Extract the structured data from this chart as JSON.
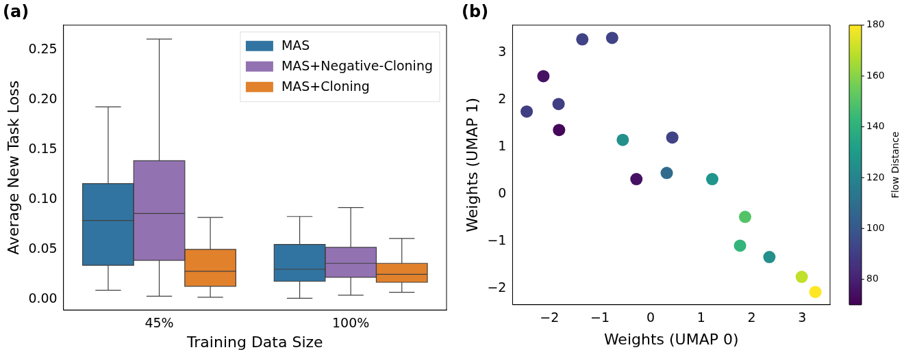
{
  "chart_data": [
    {
      "type": "box",
      "title": "(a)",
      "xlabel": "Training Data Size",
      "ylabel": "Average New Task Loss",
      "categories": [
        "45%",
        "100%"
      ],
      "ylim": [
        -0.011,
        0.275
      ],
      "yticks": [
        {
          "value": 0,
          "label": "0.00"
        },
        {
          "value": 0.05,
          "label": "0.05"
        },
        {
          "value": 0.1,
          "label": "0.10"
        },
        {
          "value": 0.15,
          "label": "0.15"
        },
        {
          "value": 0.2,
          "label": "0.20"
        },
        {
          "value": 0.25,
          "label": "0.25"
        }
      ],
      "legend": "top right",
      "series": [
        {
          "name": "MAS",
          "color": "#3274a1",
          "boxes": [
            {
              "low": 0.009,
              "q1": 0.034,
              "median": 0.079,
              "q3": 0.116,
              "high": 0.193
            },
            {
              "low": 0.001,
              "q1": 0.018,
              "median": 0.03,
              "q3": 0.055,
              "high": 0.083
            }
          ]
        },
        {
          "name": "MAS+Negative-Cloning",
          "color": "#9372b2",
          "boxes": [
            {
              "low": 0.003,
              "q1": 0.039,
              "median": 0.086,
              "q3": 0.139,
              "high": 0.261
            },
            {
              "low": 0.004,
              "q1": 0.022,
              "median": 0.036,
              "q3": 0.052,
              "high": 0.092
            }
          ]
        },
        {
          "name": "MAS+Cloning",
          "color": "#e1812c",
          "boxes": [
            {
              "low": 0.002,
              "q1": 0.013,
              "median": 0.028,
              "q3": 0.05,
              "high": 0.082
            },
            {
              "low": 0.007,
              "q1": 0.017,
              "median": 0.025,
              "q3": 0.036,
              "high": 0.061
            }
          ]
        }
      ]
    },
    {
      "type": "scatter",
      "title": "(b)",
      "xlabel": "Weights (UMAP 0)",
      "ylabel": "Weights (UMAP 1)",
      "clabel": "Flow Distance",
      "xlim": [
        -2.73,
        3.55
      ],
      "xticks": [
        {
          "value": -2,
          "label": "−2"
        },
        {
          "value": -1,
          "label": "−1"
        },
        0,
        1,
        2,
        3
      ],
      "ylim": [
        -2.34,
        3.58
      ],
      "yticks": [
        {
          "value": -2,
          "label": "−2"
        },
        {
          "value": -1,
          "label": "−1"
        },
        0,
        1,
        2,
        3
      ],
      "clim": [
        70,
        180
      ],
      "cticks": [
        80,
        100,
        120,
        140,
        160,
        180
      ],
      "marker": "circle",
      "x": [
        -2.45,
        -2.12,
        -1.82,
        -1.81,
        -1.35,
        -0.76,
        -0.55,
        -0.28,
        0.32,
        0.43,
        1.22,
        1.87,
        1.77,
        2.35,
        2.99,
        3.26
      ],
      "values": [
        1.75,
        2.5,
        1.91,
        1.36,
        3.28,
        3.31,
        1.15,
        0.32,
        0.45,
        1.2,
        0.32,
        -0.48,
        -1.09,
        -1.33,
        -1.75,
        -2.07
      ],
      "cvalues": [
        90,
        75,
        90,
        72,
        92,
        92,
        125,
        75,
        108,
        92,
        127,
        150,
        142,
        125,
        170,
        180
      ]
    }
  ]
}
